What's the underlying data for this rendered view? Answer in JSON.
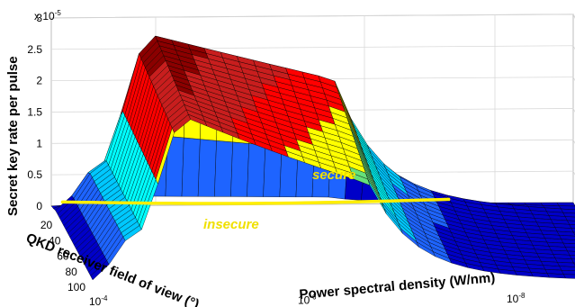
{
  "chart_data": {
    "type": "surface3d",
    "title": "",
    "zlabel": "Secret key rate per pulse",
    "zlabel_multiplier": "x 10",
    "zlabel_exponent": "-5",
    "xlabel": "QKD receiver field of view (°)",
    "ylabel": "Power spectral density (W/nm)",
    "z_ticks": [
      "0",
      "0.5",
      "1",
      "1.5",
      "2",
      "2.5",
      "3"
    ],
    "zlim": [
      0,
      3
    ],
    "fov_ticks": [
      "20",
      "40",
      "60",
      "80",
      "100"
    ],
    "fov_range": [
      0,
      100
    ],
    "psd_ticks": [
      {
        "base": "10",
        "exp": "-4"
      },
      {
        "base": "10",
        "exp": "-6"
      },
      {
        "base": "10",
        "exp": "-8"
      }
    ],
    "psd_log_range": [
      -4,
      -9
    ],
    "grid": true,
    "colormap": [
      "#0000c8",
      "#1e64ff",
      "#00c8ff",
      "#00ffff",
      "#66e07a",
      "#ffff00",
      "#ff0000",
      "#c81e1e",
      "#8b0000"
    ],
    "annotations": [
      {
        "label": "secure",
        "color": "#f0e000"
      },
      {
        "label": "insecure",
        "color": "#f0e000"
      }
    ],
    "boundary_color": "#ffee00"
  }
}
